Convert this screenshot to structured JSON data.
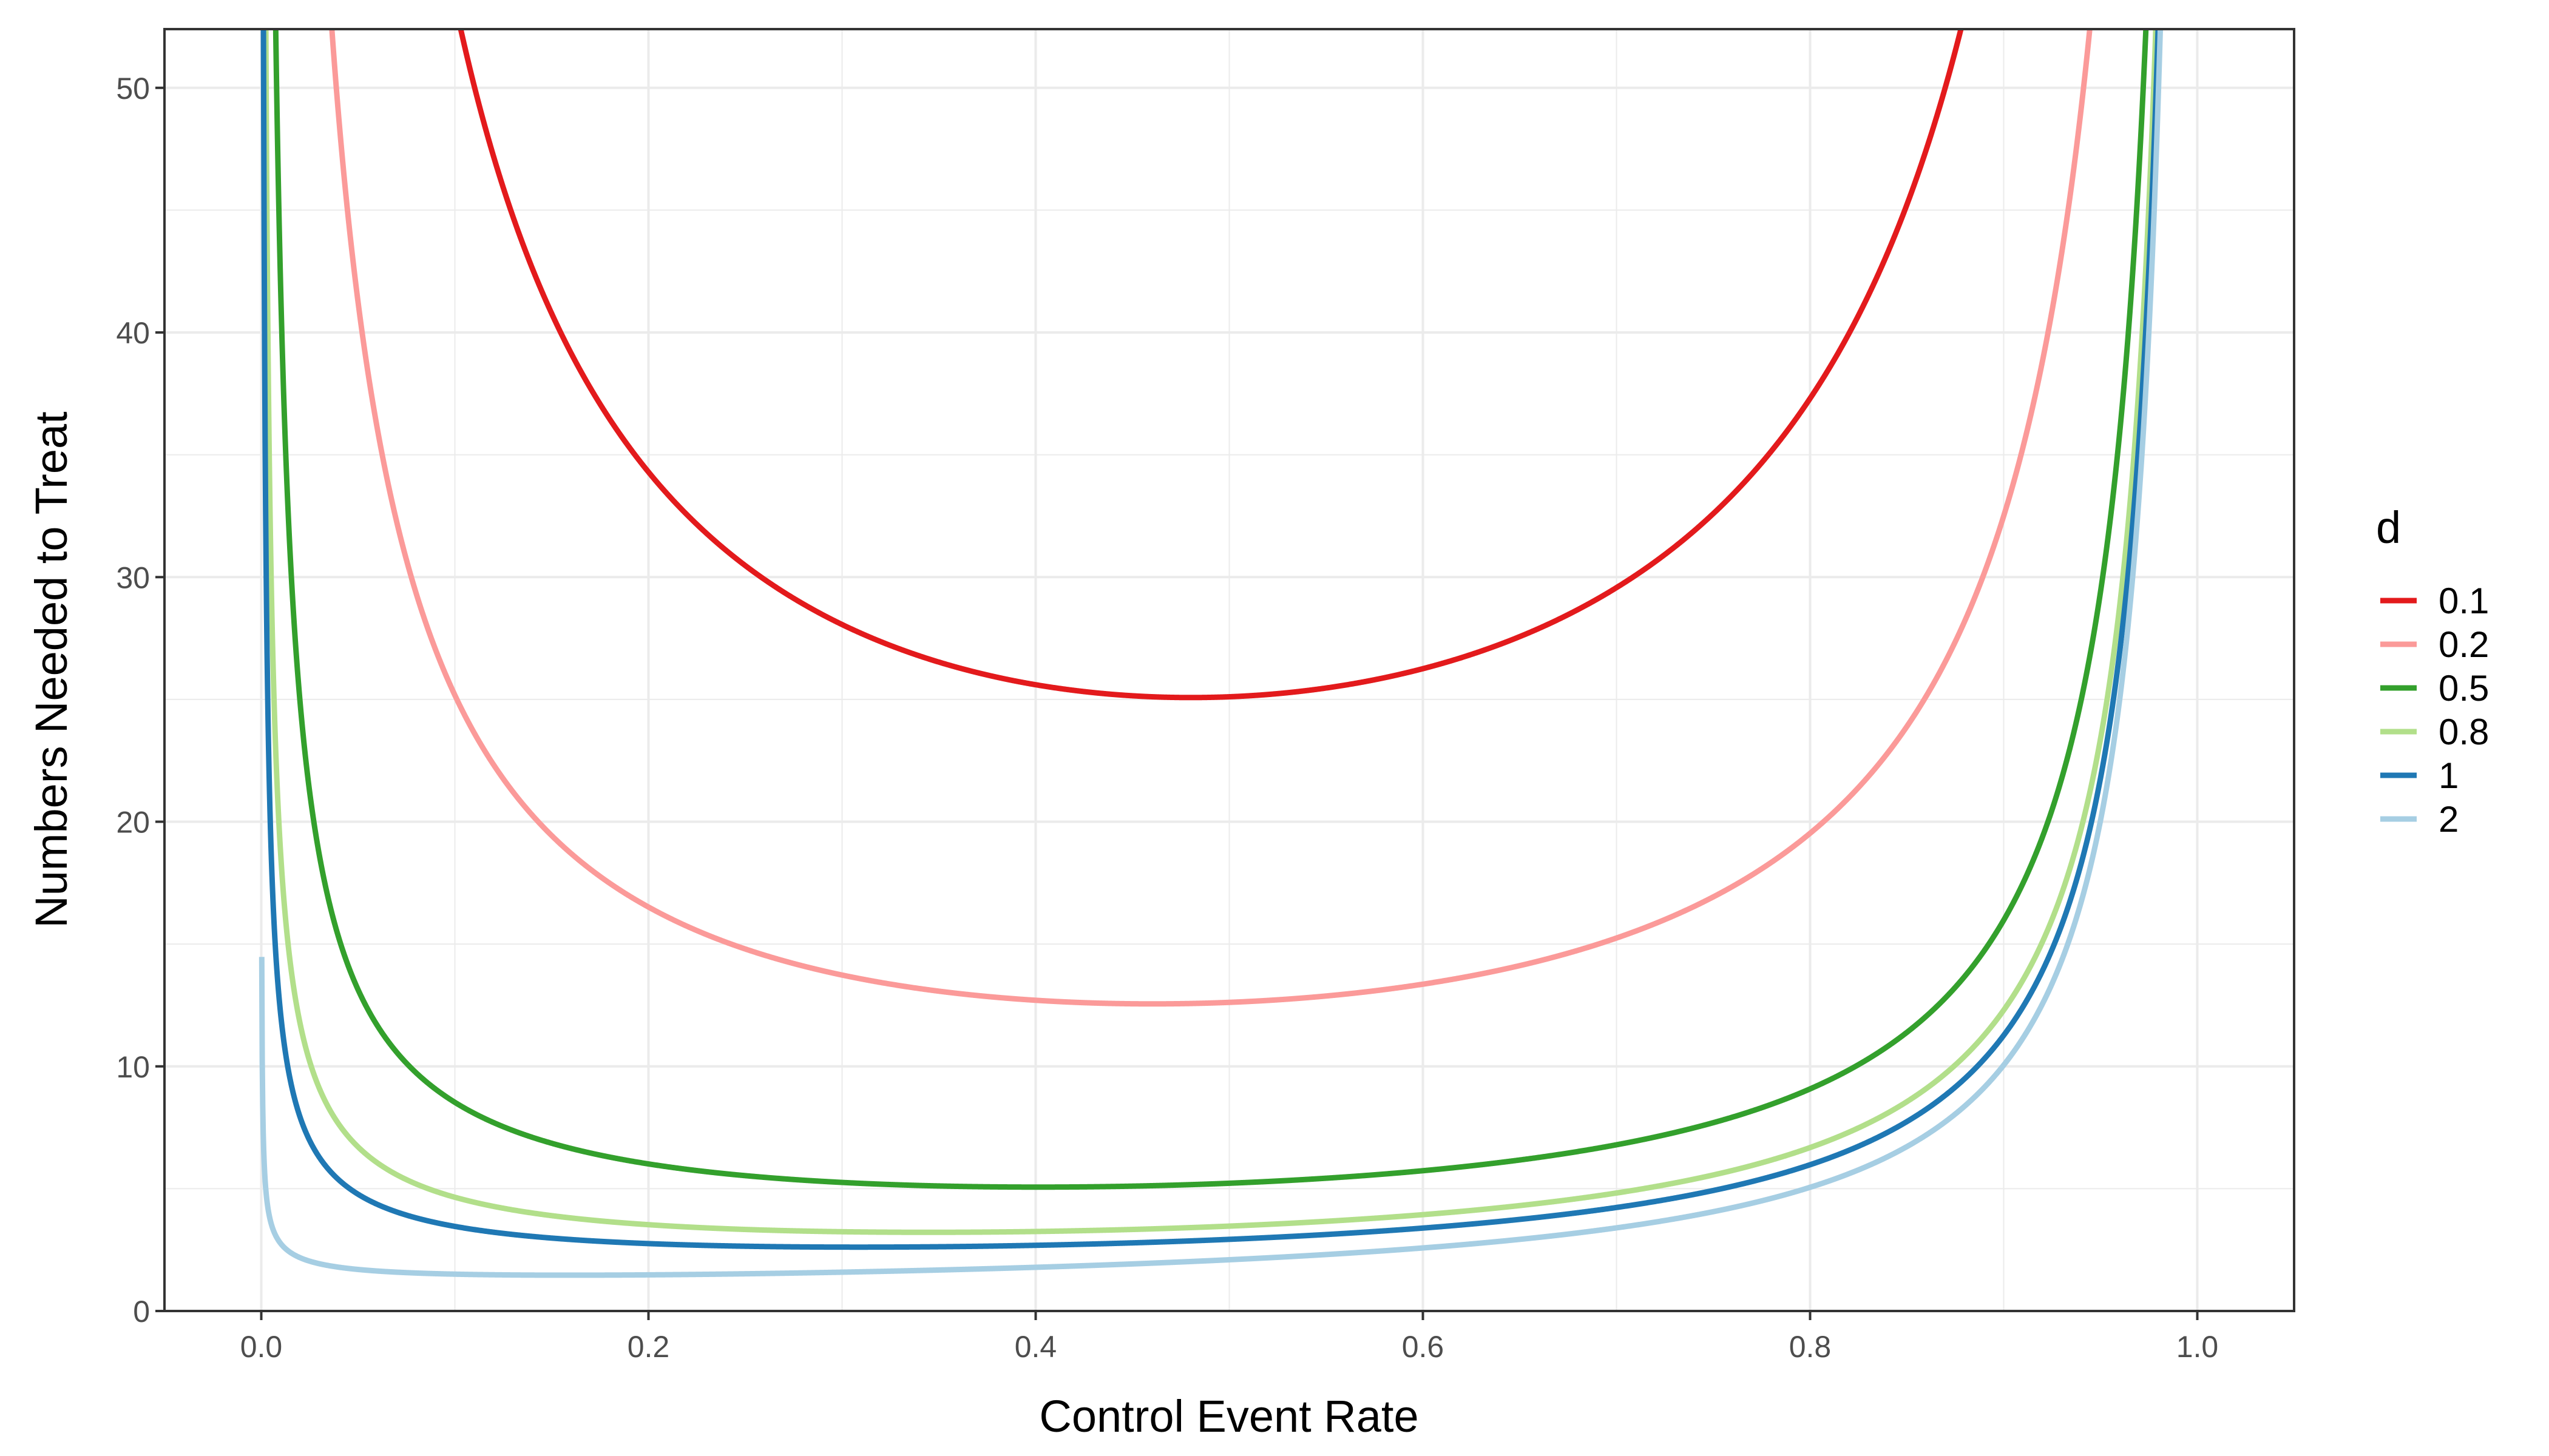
{
  "chart_data": {
    "type": "line",
    "title": "",
    "xlabel": "Control Event Rate",
    "ylabel": "Numbers Needed to Treat",
    "xlim": [
      -0.05,
      1.05
    ],
    "ylim": [
      0,
      52.4
    ],
    "x_ticks": [
      0.0,
      0.2,
      0.4,
      0.6,
      0.8,
      1.0
    ],
    "x_tick_labels": [
      "0.0",
      "0.2",
      "0.4",
      "0.6",
      "0.8",
      "1.0"
    ],
    "y_ticks": [
      0,
      10,
      20,
      30,
      40,
      50
    ],
    "y_tick_labels": [
      "0",
      "10",
      "20",
      "30",
      "40",
      "50"
    ],
    "grid": true,
    "legend": {
      "title": "d",
      "placement": "right"
    },
    "series": [
      {
        "name": "0.1",
        "color": "#e31a1c",
        "d": 0.1
      },
      {
        "name": "0.2",
        "color": "#fb9a99",
        "d": 0.2
      },
      {
        "name": "0.5",
        "color": "#33a02c",
        "d": 0.5
      },
      {
        "name": "0.8",
        "color": "#b2df8a",
        "d": 0.8
      },
      {
        "name": "1",
        "color": "#1f78b4",
        "d": 1
      },
      {
        "name": "2",
        "color": "#a6cee3",
        "d": 2
      }
    ]
  }
}
